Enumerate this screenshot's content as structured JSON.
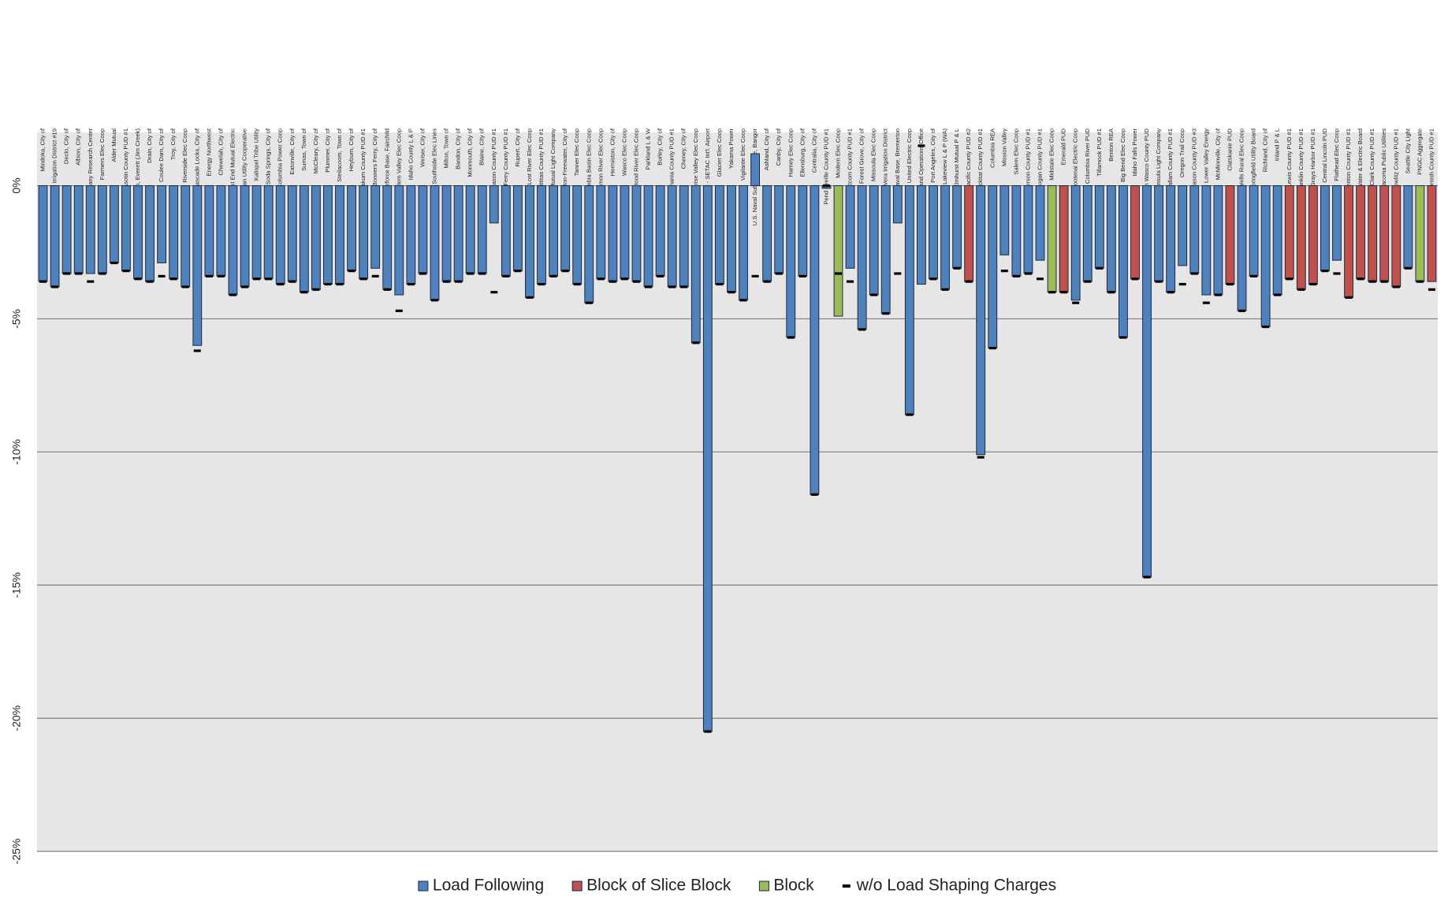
{
  "chart_data": {
    "type": "bar",
    "categories": [
      "Mindoka, City of",
      "Consolidated Irrigation District #19",
      "Declo, City of",
      "Albion, City of",
      "U.S. DOE Albany Research Center",
      "Farmers Elec Coop",
      "Alder Mutual",
      "Asotin County PUD #1",
      "U.S. Naval Station, Everett (Jim Creek)",
      "Drain, City of",
      "Coulee Dam, City of",
      "Troy, City of",
      "Riverside Elec Coop",
      "Cascade Locks, City of",
      "Energy Northwest",
      "Chewelah, City of",
      "East End Mutual Electric",
      "Umatilla Indian Utility Cooperative",
      "Kalispel Tribe Utility",
      "Soda Springs, City of",
      "Columbia Power Coop",
      "Eatonville, City of",
      "Sumas, Town of",
      "McCleary, City of",
      "Plummer, City of",
      "Steilacoom, Town of",
      "Heyburn, City of",
      "Wahkiakum County PUD #1",
      "Bonners Ferry, City of",
      "U.S. Airforce Base, Fairchild",
      "Nespelem Valley Elec Coop",
      "Idaho County L & P",
      "Weiser, City of",
      "Southside Elec Lines",
      "Milton, Town of",
      "Bandon, City of",
      "Monmouth, City of",
      "Blaine, City of",
      "Mason County PUD #1",
      "Ferry County PUD #1",
      "Rupert, City of",
      "Lost River Elec Coop",
      "Kittitas County PUD #1",
      "Ohop Mutual Light Company",
      "Milton-Freewater, City of",
      "Tanner Elec Coop",
      "Columbia Basin Elec Coop",
      "Salmon River Elec Coop",
      "Hermiston, City of",
      "Wasco Elec Coop",
      "Hood River Elec Coop",
      "Parkland L & W",
      "Burley, City of",
      "Skamania County PUD #1",
      "Cheney, City of",
      "Surprise Valley Elec Coop",
      "Port of Seattle - SETAC Int'l. Airport",
      "Glacier Elec Coop",
      "Yakama Power",
      "Vigilante Elec Coop",
      "U.S. Naval Submarine Base, Bangor",
      "Ashland, City of",
      "Canby, City of",
      "Harney Elec Coop",
      "Ellensburg, City of",
      "Centralia, City of",
      "Pend Oreille County PUD #1",
      "Modern Elec Coop",
      "Whatcom County PUD #1",
      "Forest Grove, City of",
      "Missoula Elec Coop",
      "Vera Irrigation District",
      "U.S. Naval Base, Bremerton",
      "United Electric Coop",
      "U.S. DOE Richland Operations Office",
      "Port Angeles, City of",
      "Lakeview L & P (WA)",
      "Elmhurst Mutual P & L",
      "Pacific County PUD #2",
      "Klickitat County PUD #1",
      "Columbia REA",
      "Mission Valley",
      "Salem Elec Coop",
      "Jefferson County PUD #1",
      "Okanogan County PUD #1",
      "Midstate Elec Coop",
      "Emerald PUD",
      "Kootenai Electric Coop",
      "Columbia River PUD",
      "Tillamook PUD #1",
      "Benton REA",
      "Big Bend Elec Coop",
      "Idaho Falls Power",
      "Northern Wasco County PUD",
      "Peninsula Light Company",
      "Clallam County PUD #1",
      "Oregon Trail Coop",
      "Mason County PUD #3",
      "Lower Valley Energy",
      "McMinnville, City of",
      "Clatskanie PUD",
      "Wells Rural Elec Coop",
      "Springfield Utility Board",
      "Richland, City of",
      "Inland P & L",
      "Lewis County PUD #1",
      "Franklin County PUD #1",
      "Grays Harbor PUD #1",
      "Central Lincoln PUD",
      "Flathead Elec Coop",
      "Benton County PUD #1",
      "Eugene Water & Electric Board",
      "Clark County PUD #1",
      "Tacoma Public Utilities",
      "Cowlitz County PUD #1",
      "Seattle City Light",
      "PNGC Aggregate",
      "Snohomish County PUD #1"
    ],
    "series": [
      {
        "name": "Load Following",
        "color": "#4f81bd",
        "values": [
          -3.6,
          -3.8,
          -3.3,
          -3.3,
          -3.3,
          -3.3,
          -2.9,
          -3.2,
          -3.5,
          -3.6,
          -2.9,
          -3.5,
          -3.8,
          -6.0,
          -3.4,
          -3.4,
          -4.1,
          -3.8,
          -3.5,
          -3.5,
          -3.7,
          -3.6,
          -4.0,
          -3.9,
          -3.7,
          -3.7,
          -3.2,
          -3.5,
          -3.1,
          -3.9,
          -4.1,
          -3.7,
          -3.3,
          -4.3,
          -3.6,
          -3.6,
          -3.3,
          -3.3,
          -1.4,
          -3.4,
          -3.2,
          -4.2,
          -3.7,
          -3.4,
          -3.2,
          -3.7,
          -4.4,
          -3.5,
          -3.6,
          -3.5,
          -3.6,
          -3.8,
          -3.4,
          -3.8,
          -3.8,
          -5.9,
          -20.5,
          -3.7,
          -4.0,
          -4.3,
          1.2,
          -3.6,
          -3.3,
          -5.7,
          -3.4,
          -11.6,
          -0.1,
          null,
          -3.1,
          -5.4,
          -4.1,
          -4.8,
          -1.4,
          -8.6,
          -3.7,
          -3.5,
          -3.9,
          -3.1,
          null,
          -10.1,
          -6.1,
          -2.6,
          -3.4,
          -3.3,
          -2.8,
          null,
          null,
          -4.3,
          -3.6,
          -3.1,
          -4.0,
          -5.7,
          null,
          -14.7,
          -3.6,
          -4.0,
          -3.0,
          -3.3,
          -4.1,
          -4.1,
          null,
          -4.7,
          -3.4,
          -5.3,
          -4.1,
          null,
          null,
          null,
          -3.2,
          -2.8,
          null,
          null,
          null,
          null,
          null,
          -3.1,
          null,
          null
        ]
      },
      {
        "name": "Block of Slice Block",
        "color": "#c0504d",
        "values": [
          null,
          null,
          null,
          null,
          null,
          null,
          null,
          null,
          null,
          null,
          null,
          null,
          null,
          null,
          null,
          null,
          null,
          null,
          null,
          null,
          null,
          null,
          null,
          null,
          null,
          null,
          null,
          null,
          null,
          null,
          null,
          null,
          null,
          null,
          null,
          null,
          null,
          null,
          null,
          null,
          null,
          null,
          null,
          null,
          null,
          null,
          null,
          null,
          null,
          null,
          null,
          null,
          null,
          null,
          null,
          null,
          null,
          null,
          null,
          null,
          null,
          null,
          null,
          null,
          null,
          null,
          null,
          null,
          null,
          null,
          null,
          null,
          null,
          null,
          null,
          null,
          null,
          null,
          -3.6,
          null,
          null,
          null,
          null,
          null,
          null,
          null,
          -4.0,
          null,
          null,
          null,
          null,
          null,
          -3.5,
          null,
          null,
          null,
          null,
          null,
          null,
          null,
          -3.7,
          null,
          null,
          null,
          null,
          -3.5,
          -3.9,
          -3.7,
          null,
          null,
          -4.2,
          -3.5,
          -3.6,
          -3.6,
          -3.8,
          null,
          null,
          -3.6
        ]
      },
      {
        "name": "Block",
        "color": "#9bbb59",
        "values": [
          null,
          null,
          null,
          null,
          null,
          null,
          null,
          null,
          null,
          null,
          null,
          null,
          null,
          null,
          null,
          null,
          null,
          null,
          null,
          null,
          null,
          null,
          null,
          null,
          null,
          null,
          null,
          null,
          null,
          null,
          null,
          null,
          null,
          null,
          null,
          null,
          null,
          null,
          null,
          null,
          null,
          null,
          null,
          null,
          null,
          null,
          null,
          null,
          null,
          null,
          null,
          null,
          null,
          null,
          null,
          null,
          null,
          null,
          null,
          null,
          null,
          null,
          null,
          null,
          null,
          null,
          null,
          -4.9,
          null,
          null,
          null,
          null,
          null,
          null,
          null,
          null,
          null,
          null,
          null,
          null,
          null,
          null,
          null,
          null,
          null,
          -4.0,
          null,
          null,
          null,
          null,
          null,
          null,
          null,
          null,
          null,
          null,
          null,
          null,
          null,
          null,
          null,
          null,
          null,
          null,
          null,
          null,
          null,
          null,
          null,
          null,
          null,
          null,
          null,
          null,
          null,
          null,
          -3.6,
          null
        ]
      },
      {
        "name": "w/o Load Shaping Charges",
        "color": "#000000",
        "marker": "dash",
        "values": [
          -3.6,
          -3.8,
          -3.3,
          -3.3,
          -3.6,
          -3.3,
          -2.9,
          -3.2,
          -3.5,
          -3.6,
          -3.4,
          -3.5,
          -3.8,
          -6.2,
          -3.4,
          -3.4,
          -4.1,
          -3.8,
          -3.5,
          -3.5,
          -3.7,
          -3.6,
          -4.0,
          -3.9,
          -3.7,
          -3.7,
          -3.2,
          -3.5,
          -3.4,
          -3.9,
          -4.7,
          -3.7,
          -3.3,
          -4.3,
          -3.6,
          -3.6,
          -3.3,
          -3.3,
          -4.0,
          -3.4,
          -3.2,
          -4.2,
          -3.7,
          -3.4,
          -3.2,
          -3.7,
          -4.4,
          -3.5,
          -3.6,
          -3.5,
          -3.6,
          -3.8,
          -3.4,
          -3.8,
          -3.8,
          -5.9,
          -20.5,
          -3.7,
          -4.0,
          -4.3,
          -3.4,
          -3.6,
          -3.3,
          -5.7,
          -3.4,
          -11.6,
          0,
          -3.3,
          -3.6,
          -5.4,
          -4.1,
          -4.8,
          -3.3,
          -8.6,
          1.5,
          -3.5,
          -3.9,
          -3.1,
          -3.6,
          -10.2,
          -6.1,
          -3.2,
          -3.4,
          -3.3,
          -3.5,
          -4.0,
          -4.0,
          -4.4,
          -3.6,
          -3.1,
          -4.0,
          -5.7,
          -3.5,
          -14.7,
          -3.6,
          -4.0,
          -3.7,
          -3.3,
          -4.4,
          -4.1,
          -3.7,
          -4.7,
          -3.4,
          -5.3,
          -4.1,
          -3.5,
          -3.9,
          -3.7,
          -3.2,
          -3.3,
          -4.2,
          -3.5,
          -3.6,
          -3.6,
          -3.8,
          -3.1,
          -3.6,
          -3.9
        ]
      }
    ],
    "ylim": [
      -25,
      2
    ],
    "yticks": [
      {
        "value": -25,
        "label": "-25%"
      },
      {
        "value": -20,
        "label": "-20%"
      },
      {
        "value": -15,
        "label": "-15%"
      },
      {
        "value": -10,
        "label": "-10%"
      },
      {
        "value": -5,
        "label": "-5%"
      },
      {
        "value": 0,
        "label": "0%"
      }
    ],
    "grid": true,
    "legend": "bottom"
  }
}
